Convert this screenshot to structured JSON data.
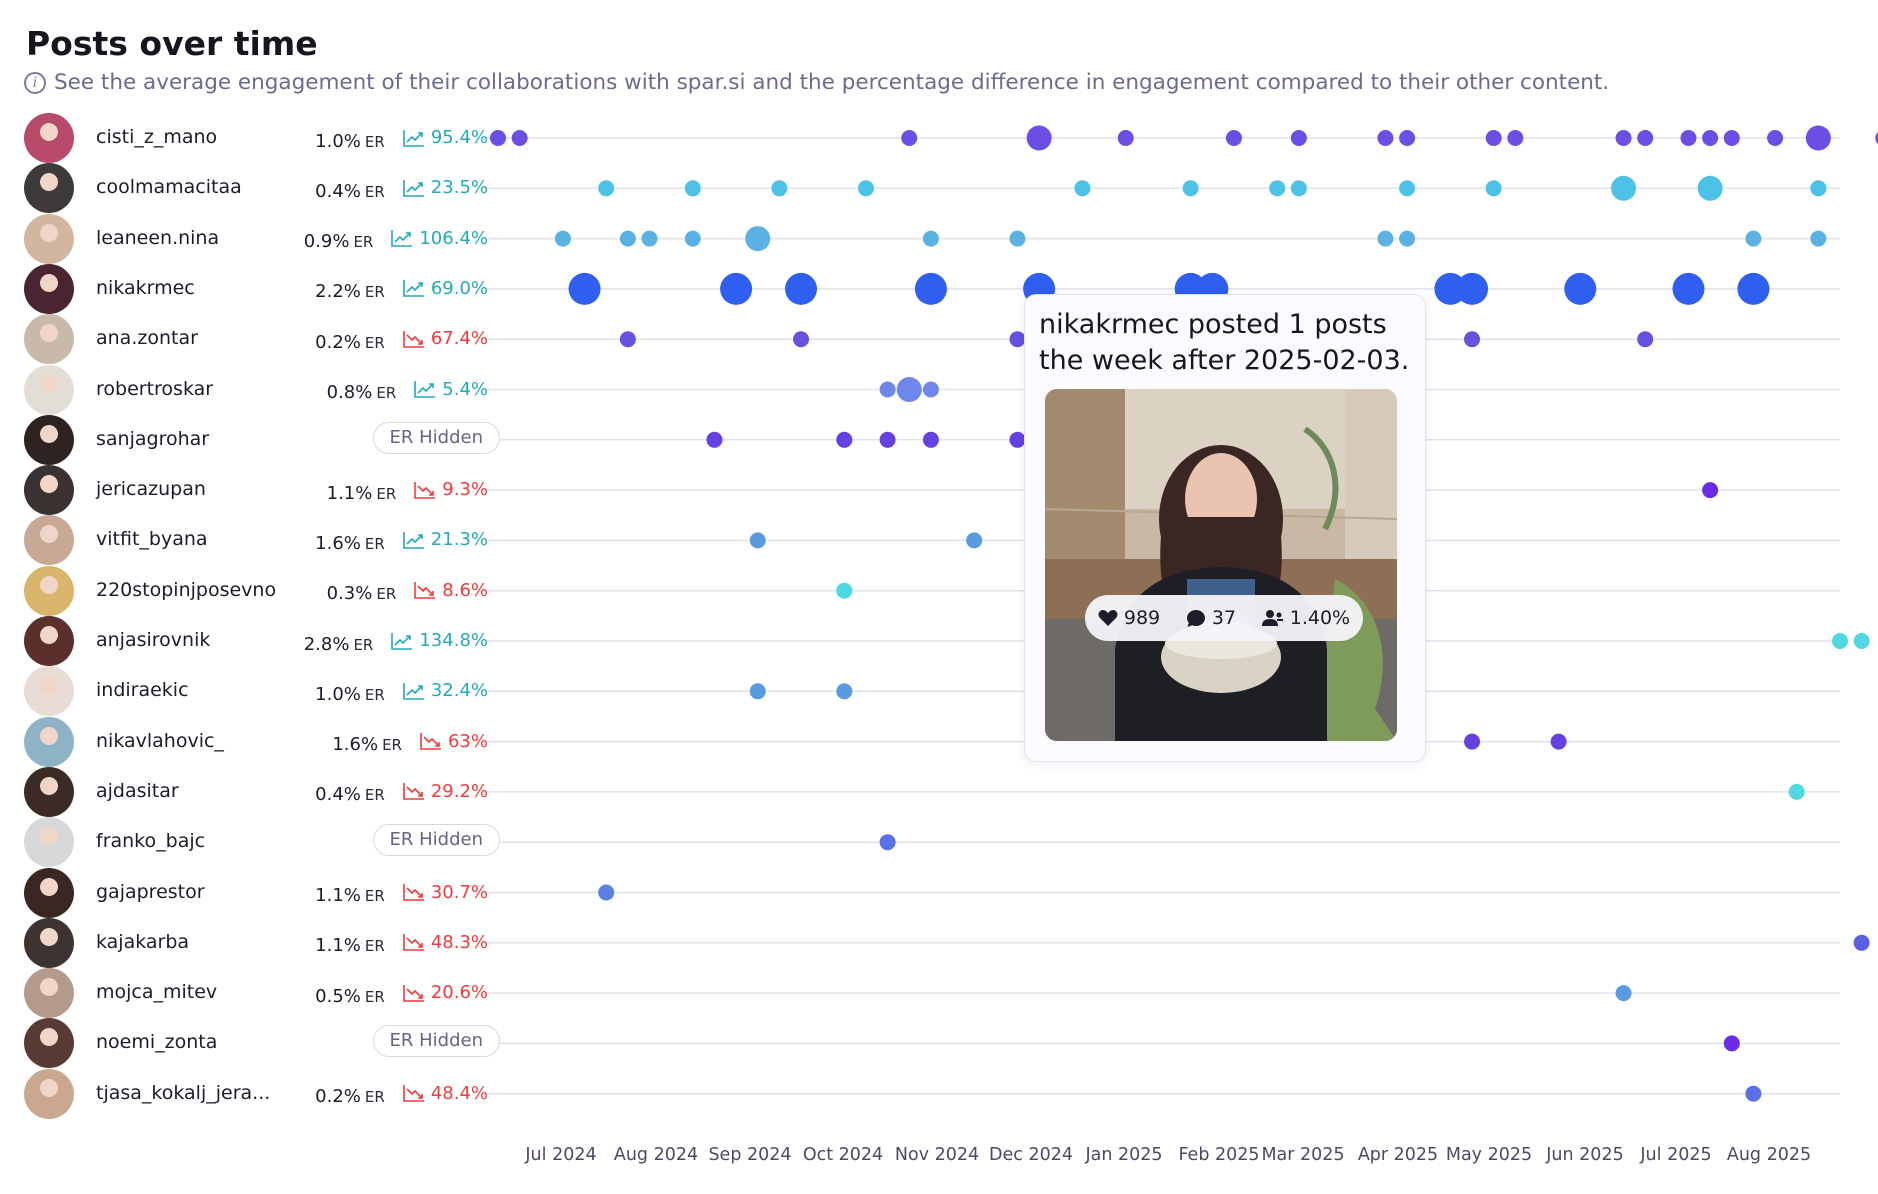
{
  "title": "Posts over time",
  "subtitle": "See the average engagement of their collaborations with spar.si and the percentage difference in engagement compared to their other content.",
  "icons": {
    "subtitle": "info-icon",
    "trend_up": "trend-up-icon",
    "trend_down": "trend-down-icon"
  },
  "colors": {
    "up": "#22aab8",
    "down": "#ef3b3b"
  },
  "er_hidden_label": "ER Hidden",
  "er_unit": "ER",
  "chart_data": {
    "type": "scatter",
    "title": "Posts over time",
    "x_ticks": [
      "Jul 2024",
      "Aug 2024",
      "Sep 2024",
      "Oct 2024",
      "Nov 2024",
      "Dec 2024",
      "Jan 2025",
      "Feb 2025",
      "Mar 2025",
      "Apr 2025",
      "May 2025",
      "Jun 2025",
      "Jul 2025",
      "Aug 2025"
    ],
    "x_range": [
      "2024-06-17",
      "2025-08-25"
    ],
    "grid": true,
    "series": [
      {
        "name": "cisti_z_mano",
        "er": "1.0%",
        "delta": "95.4%",
        "trend": "up",
        "color": "#6b4fe4",
        "posts": [
          [
            "2024-06-17",
            1
          ],
          [
            "2024-06-24",
            1
          ],
          [
            "2024-10-28",
            1
          ],
          [
            "2024-12-09",
            2
          ],
          [
            "2025-01-06",
            1
          ],
          [
            "2025-02-10",
            1
          ],
          [
            "2025-03-03",
            1
          ],
          [
            "2025-03-31",
            1
          ],
          [
            "2025-04-07",
            1
          ],
          [
            "2025-05-05",
            1
          ],
          [
            "2025-05-12",
            1
          ],
          [
            "2025-06-16",
            1
          ],
          [
            "2025-06-23",
            1
          ],
          [
            "2025-07-07",
            1
          ],
          [
            "2025-07-14",
            1
          ],
          [
            "2025-07-21",
            1
          ],
          [
            "2025-08-04",
            1
          ],
          [
            "2025-08-18",
            2
          ],
          [
            "2025-09-08",
            1
          ]
        ]
      },
      {
        "name": "coolmamacitaa",
        "er": "0.4%",
        "delta": "23.5%",
        "trend": "up",
        "color": "#4cc3e6",
        "posts": [
          [
            "2024-07-22",
            1
          ],
          [
            "2024-08-19",
            1
          ],
          [
            "2024-09-16",
            1
          ],
          [
            "2024-10-14",
            1
          ],
          [
            "2024-12-23",
            1
          ],
          [
            "2025-01-27",
            1
          ],
          [
            "2025-02-24",
            1
          ],
          [
            "2025-03-03",
            1
          ],
          [
            "2025-04-07",
            1
          ],
          [
            "2025-05-05",
            1
          ],
          [
            "2025-06-16",
            2
          ],
          [
            "2025-07-14",
            2
          ],
          [
            "2025-08-18",
            1
          ]
        ]
      },
      {
        "name": "leaneen.nina",
        "er": "0.9%",
        "delta": "106.4%",
        "trend": "up",
        "color": "#5ab1e4",
        "posts": [
          [
            "2024-07-08",
            1
          ],
          [
            "2024-07-29",
            1
          ],
          [
            "2024-08-05",
            1
          ],
          [
            "2024-08-19",
            1
          ],
          [
            "2024-09-09",
            2
          ],
          [
            "2024-11-04",
            1
          ],
          [
            "2024-12-02",
            1
          ],
          [
            "2025-03-31",
            1
          ],
          [
            "2025-04-07",
            1
          ],
          [
            "2025-07-28",
            1
          ],
          [
            "2025-08-18",
            1
          ]
        ]
      },
      {
        "name": "nikakrmec",
        "er": "2.2%",
        "delta": "69.0%",
        "trend": "up",
        "color": "#2e5ff0",
        "posts": [
          [
            "2024-07-15",
            3
          ],
          [
            "2024-09-02",
            3
          ],
          [
            "2024-09-23",
            3
          ],
          [
            "2024-11-04",
            3
          ],
          [
            "2024-12-09",
            3
          ],
          [
            "2025-01-27",
            3
          ],
          [
            "2025-02-03",
            3
          ],
          [
            "2025-04-21",
            3
          ],
          [
            "2025-04-28",
            3
          ],
          [
            "2025-06-02",
            3
          ],
          [
            "2025-07-07",
            3
          ],
          [
            "2025-07-28",
            3
          ]
        ]
      },
      {
        "name": "ana.zontar",
        "er": "0.2%",
        "delta": "67.4%",
        "trend": "down",
        "color": "#6552df",
        "posts": [
          [
            "2024-07-29",
            1
          ],
          [
            "2024-09-23",
            1
          ],
          [
            "2024-12-02",
            1
          ],
          [
            "2025-04-07",
            1
          ],
          [
            "2025-04-28",
            1
          ],
          [
            "2025-06-23",
            1
          ]
        ]
      },
      {
        "name": "robertroskar",
        "er": "0.8%",
        "delta": "5.4%",
        "trend": "up",
        "color": "#6f86ea",
        "posts": [
          [
            "2024-10-21",
            1
          ],
          [
            "2024-10-28",
            2
          ],
          [
            "2024-11-04",
            1
          ]
        ]
      },
      {
        "name": "sanjagrohar",
        "er": null,
        "delta": null,
        "trend": null,
        "color": "#6541e2",
        "posts": [
          [
            "2024-08-26",
            1
          ],
          [
            "2024-10-07",
            1
          ],
          [
            "2024-10-21",
            1
          ],
          [
            "2024-11-04",
            1
          ],
          [
            "2024-12-02",
            1
          ]
        ]
      },
      {
        "name": "jericazupan",
        "er": "1.1%",
        "delta": "9.3%",
        "trend": "down",
        "color": "#6a2ce6",
        "posts": [
          [
            "2025-07-14",
            1
          ]
        ]
      },
      {
        "name": "vitfit_byana",
        "er": "1.6%",
        "delta": "21.3%",
        "trend": "up",
        "color": "#5a9be0",
        "posts": [
          [
            "2024-09-09",
            1
          ],
          [
            "2024-11-18",
            1
          ]
        ]
      },
      {
        "name": "220stopinjposevno",
        "er": "0.3%",
        "delta": "8.6%",
        "trend": "down",
        "color": "#4fd8e2",
        "posts": [
          [
            "2024-10-07",
            1
          ]
        ]
      },
      {
        "name": "anjasirovnik",
        "er": "2.8%",
        "delta": "134.8%",
        "trend": "up",
        "color": "#4fd8e2",
        "posts": [
          [
            "2025-08-25",
            1
          ],
          [
            "2025-09-01",
            1
          ]
        ]
      },
      {
        "name": "indiraekic",
        "er": "1.0%",
        "delta": "32.4%",
        "trend": "up",
        "color": "#5a9be0",
        "posts": [
          [
            "2024-09-09",
            1
          ],
          [
            "2024-10-07",
            1
          ]
        ]
      },
      {
        "name": "nikavlahovic_",
        "er": "1.6%",
        "delta": "63%",
        "trend": "down",
        "color": "#6541e2",
        "posts": [
          [
            "2025-04-28",
            1
          ],
          [
            "2025-05-26",
            1
          ]
        ]
      },
      {
        "name": "ajdasitar",
        "er": "0.4%",
        "delta": "29.2%",
        "trend": "down",
        "color": "#4fd8e2",
        "posts": [
          [
            "2025-08-11",
            1
          ]
        ]
      },
      {
        "name": "franko_bajc",
        "er": null,
        "delta": null,
        "trend": null,
        "color": "#5a70e6",
        "posts": [
          [
            "2024-10-21",
            1
          ]
        ]
      },
      {
        "name": "gajaprestor",
        "er": "1.1%",
        "delta": "30.7%",
        "trend": "down",
        "color": "#5a80e2",
        "posts": [
          [
            "2024-07-22",
            1
          ]
        ]
      },
      {
        "name": "kajakarba",
        "er": "1.1%",
        "delta": "48.3%",
        "trend": "down",
        "color": "#5a60e4",
        "posts": [
          [
            "2025-09-01",
            1
          ]
        ]
      },
      {
        "name": "mojca_mitev",
        "er": "0.5%",
        "delta": "20.6%",
        "trend": "down",
        "color": "#5a9be0",
        "posts": [
          [
            "2025-06-16",
            1
          ]
        ]
      },
      {
        "name": "noemi_zonta",
        "er": null,
        "delta": null,
        "trend": null,
        "color": "#6a2ce6",
        "posts": [
          [
            "2025-07-21",
            1
          ]
        ]
      },
      {
        "name": "tjasa_kokalj_jera...",
        "er": "0.2%",
        "delta": "48.4%",
        "trend": "down",
        "color": "#5a70e6",
        "posts": [
          [
            "2025-07-28",
            1
          ]
        ]
      }
    ]
  },
  "tooltip": {
    "text": "nikakrmec posted 1 posts the week after 2025-02-03.",
    "likes": "989",
    "comments": "37",
    "engagement": "1.40%",
    "icons": {
      "likes": "heart-icon",
      "comments": "comment-icon",
      "engagement": "followers-icon"
    }
  }
}
